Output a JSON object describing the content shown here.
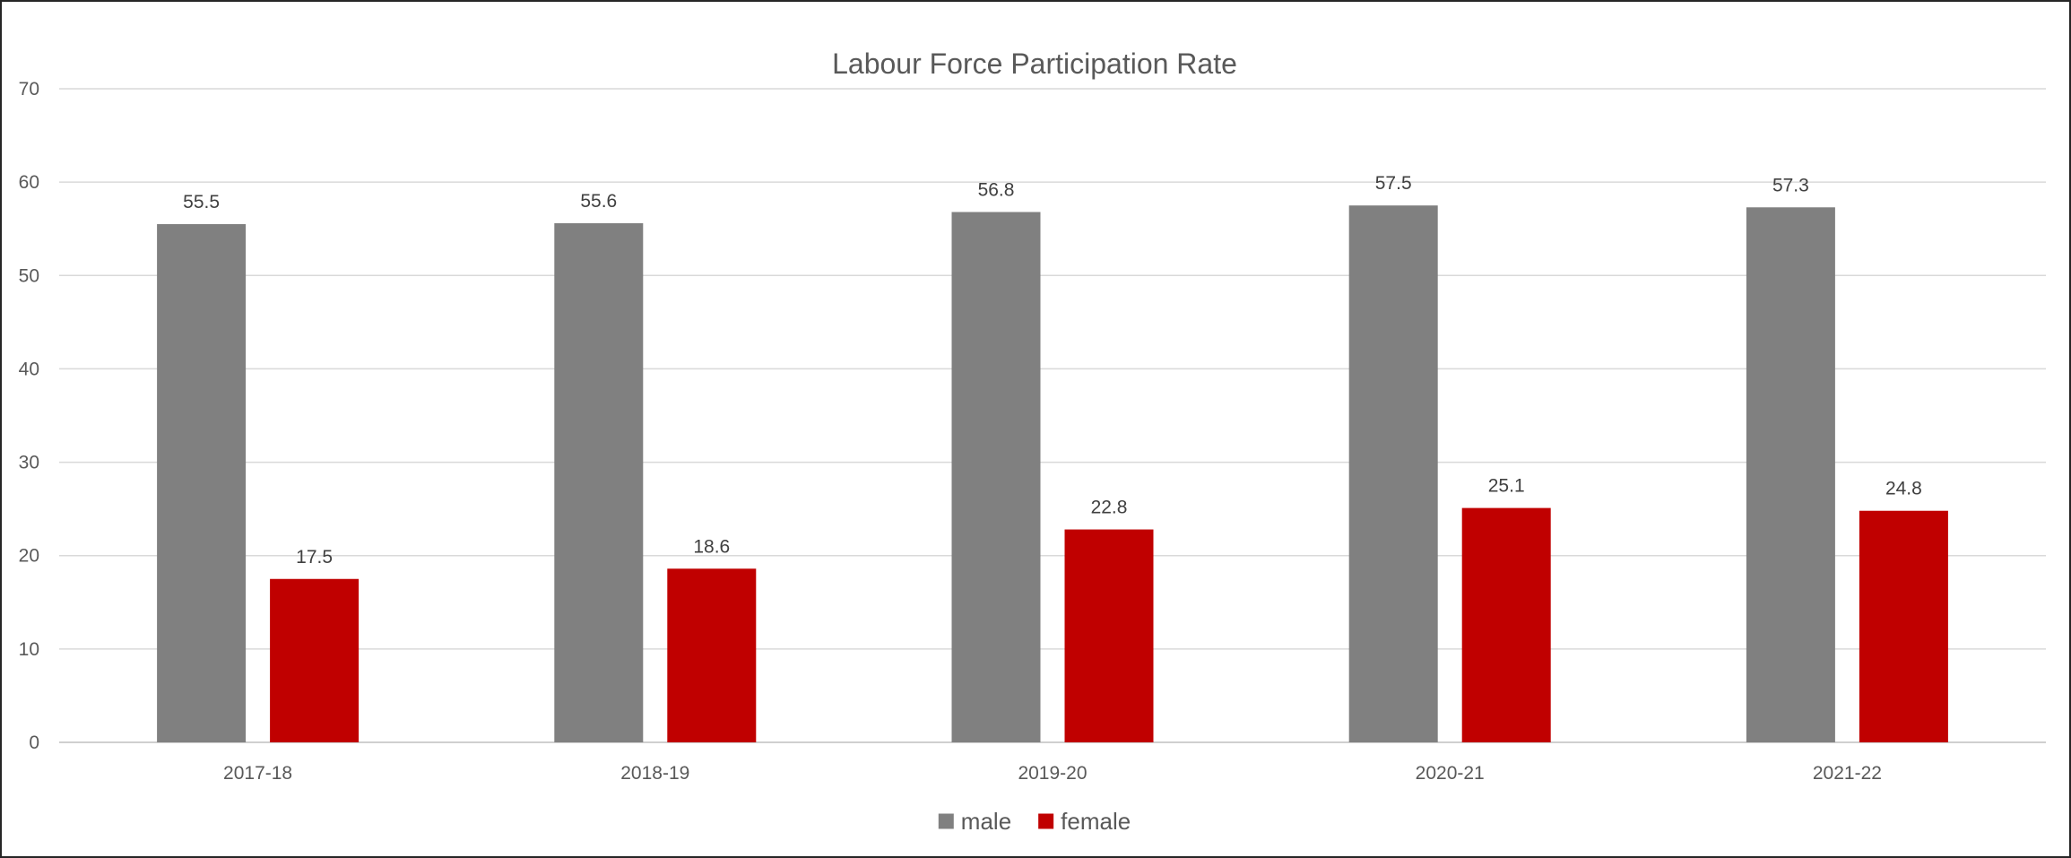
{
  "chart_data": {
    "type": "bar",
    "title": "Labour Force Participation Rate",
    "xlabel": "",
    "ylabel": "",
    "categories": [
      "2017-18",
      "2018-19",
      "2019-20",
      "2020-21",
      "2021-22"
    ],
    "series": [
      {
        "name": "male",
        "color": "#808080",
        "values": [
          55.5,
          55.6,
          56.8,
          57.5,
          57.3
        ]
      },
      {
        "name": "female",
        "color": "#c00000",
        "values": [
          17.5,
          18.6,
          22.8,
          25.1,
          24.8
        ]
      }
    ],
    "ylim": [
      0,
      70
    ],
    "yticks": [
      0,
      10,
      20,
      30,
      40,
      50,
      60,
      70
    ],
    "grid": true,
    "legend_position": "bottom",
    "data_labels": true
  }
}
